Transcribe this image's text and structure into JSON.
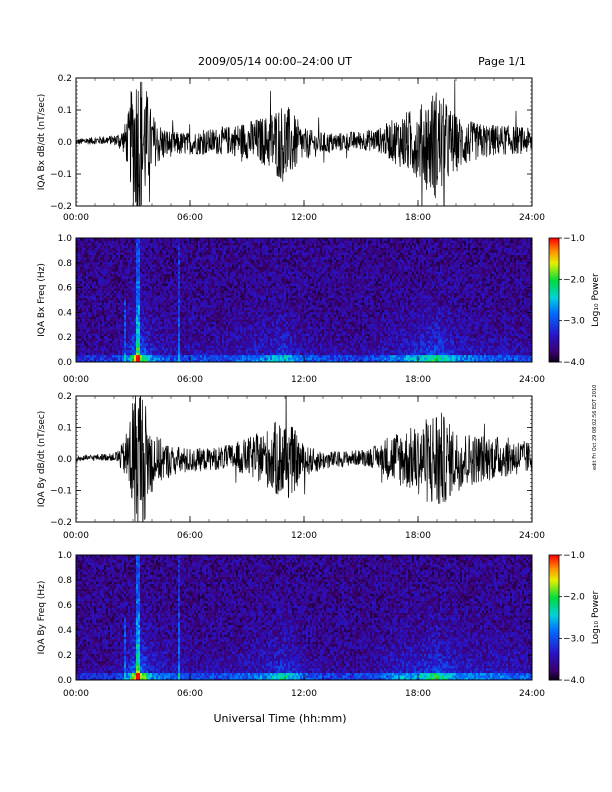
{
  "header": {
    "title": "2009/05/14  00:00–24:00 UT",
    "page": "Page 1/1"
  },
  "side_stamp": "edit Fri Oct 29 08:02:56 EDT 2010",
  "chart_data": [
    {
      "type": "line",
      "panel": "bx_waveform",
      "ylabel": "IQA Bx dB/dt (nT/sec)",
      "xlabel": "",
      "xlim": [
        0,
        24
      ],
      "ylim": [
        -0.2,
        0.2
      ],
      "x_ticks": [
        "00:00",
        "06:00",
        "12:00",
        "18:00",
        "24:00"
      ],
      "y_ticks": [
        "−0.2",
        "−0.1",
        "0.0",
        "0.1",
        "0.2"
      ],
      "y_tick_values": [
        -0.2,
        -0.1,
        0.0,
        0.1,
        0.2
      ],
      "envelope": {
        "x": [
          0,
          1,
          2,
          2.5,
          2.8,
          3.0,
          3.3,
          3.6,
          3.9,
          4.2,
          5,
          6,
          7,
          8,
          9,
          10,
          10.5,
          11,
          11.5,
          12,
          13,
          14,
          15,
          16,
          16.5,
          17,
          17.5,
          18,
          18.5,
          19,
          19.5,
          20,
          21,
          22,
          23,
          24
        ],
        "amp": [
          0.01,
          0.012,
          0.015,
          0.04,
          0.1,
          0.22,
          0.25,
          0.2,
          0.12,
          0.07,
          0.04,
          0.035,
          0.04,
          0.045,
          0.06,
          0.08,
          0.11,
          0.13,
          0.09,
          0.05,
          0.035,
          0.03,
          0.03,
          0.04,
          0.06,
          0.08,
          0.1,
          0.11,
          0.15,
          0.18,
          0.13,
          0.09,
          0.06,
          0.05,
          0.045,
          0.04
        ]
      }
    },
    {
      "type": "heatmap",
      "panel": "bx_spectrogram",
      "ylabel": "IQA Bx Freq (Hz)",
      "xlim": [
        0,
        24
      ],
      "ylim": [
        0.0,
        1.0
      ],
      "x_ticks": [
        "00:00",
        "06:00",
        "12:00",
        "18:00",
        "24:00"
      ],
      "y_ticks": [
        "0.0",
        "0.2",
        "0.4",
        "0.6",
        "0.8",
        "1.0"
      ],
      "y_tick_values": [
        0.0,
        0.2,
        0.4,
        0.6,
        0.8,
        1.0
      ],
      "colorbar": {
        "label": "Log₁₀ Power",
        "range": [
          -4.0,
          -1.0
        ],
        "ticks": [
          "−1.0",
          "−2.0",
          "−3.0",
          "−4.0"
        ],
        "tick_values": [
          -1.0,
          -2.0,
          -3.0,
          -4.0
        ]
      }
    },
    {
      "type": "line",
      "panel": "by_waveform",
      "ylabel": "IQA By dB/dt (nT/sec)",
      "xlabel": "",
      "xlim": [
        0,
        24
      ],
      "ylim": [
        -0.2,
        0.2
      ],
      "x_ticks": [
        "00:00",
        "06:00",
        "12:00",
        "18:00",
        "24:00"
      ],
      "y_ticks": [
        "−0.2",
        "−0.1",
        "0.0",
        "0.1",
        "0.2"
      ],
      "y_tick_values": [
        -0.2,
        -0.1,
        0.0,
        0.1,
        0.2
      ],
      "envelope": {
        "x": [
          0,
          1,
          2,
          2.5,
          2.8,
          3.0,
          3.3,
          3.6,
          3.9,
          4.2,
          5,
          6,
          7,
          8,
          9,
          10,
          10.5,
          11,
          11.5,
          12,
          13,
          14,
          15,
          16,
          16.5,
          17,
          17.5,
          18,
          18.5,
          19,
          19.5,
          20,
          21,
          22,
          23,
          24
        ],
        "amp": [
          0.008,
          0.01,
          0.012,
          0.05,
          0.12,
          0.22,
          0.25,
          0.2,
          0.12,
          0.08,
          0.05,
          0.04,
          0.035,
          0.04,
          0.06,
          0.09,
          0.12,
          0.14,
          0.1,
          0.05,
          0.03,
          0.025,
          0.025,
          0.04,
          0.08,
          0.09,
          0.1,
          0.11,
          0.14,
          0.18,
          0.13,
          0.1,
          0.08,
          0.07,
          0.06,
          0.05
        ]
      }
    },
    {
      "type": "heatmap",
      "panel": "by_spectrogram",
      "ylabel": "IQA By Freq (Hz)",
      "xlabel": "Universal Time (hh:mm)",
      "xlim": [
        0,
        24
      ],
      "ylim": [
        0.0,
        1.0
      ],
      "x_ticks": [
        "00:00",
        "06:00",
        "12:00",
        "18:00",
        "24:00"
      ],
      "y_ticks": [
        "0.0",
        "0.2",
        "0.4",
        "0.6",
        "0.8",
        "1.0"
      ],
      "y_tick_values": [
        0.0,
        0.2,
        0.4,
        0.6,
        0.8,
        1.0
      ],
      "colorbar": {
        "label": "Log₁₀ Power",
        "range": [
          -4.0,
          -1.0
        ],
        "ticks": [
          "−1.0",
          "−2.0",
          "−3.0",
          "−4.0"
        ],
        "tick_values": [
          -1.0,
          -2.0,
          -3.0,
          -4.0
        ]
      }
    }
  ]
}
